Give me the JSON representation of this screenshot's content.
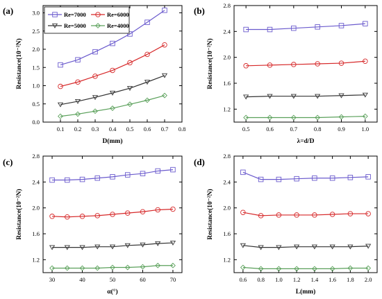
{
  "chart_data": [
    {
      "type": "line",
      "panel": "(a)",
      "xlabel": "D(mm)",
      "ylabel": "Resistance(10⁻²N)",
      "xlim": [
        0.0,
        0.8
      ],
      "ylim": [
        0.0,
        3.2
      ],
      "xticks": [
        "0.1",
        "0.2",
        "0.3",
        "0.4",
        "0.5",
        "0.6",
        "0.7",
        "0.8"
      ],
      "yticks": [
        "0.0",
        "0.5",
        "1.0",
        "1.5",
        "2.0",
        "2.5",
        "3.0"
      ],
      "legend": "top-left",
      "x": [
        0.1,
        0.2,
        0.3,
        0.4,
        0.5,
        0.6,
        0.7
      ],
      "series": [
        {
          "name": "Re=7000",
          "color": "#6a5acd",
          "marker": "square",
          "values": [
            1.57,
            1.71,
            1.93,
            2.16,
            2.42,
            2.74,
            3.07
          ]
        },
        {
          "name": "Re=6000",
          "color": "#d62728",
          "marker": "circle",
          "values": [
            0.98,
            1.1,
            1.26,
            1.42,
            1.63,
            1.86,
            2.12
          ]
        },
        {
          "name": "Re=5000",
          "color": "#333333",
          "marker": "triangle",
          "values": [
            0.48,
            0.57,
            0.68,
            0.8,
            0.93,
            1.1,
            1.28
          ]
        },
        {
          "name": "Re=4000",
          "color": "#5aa05a",
          "marker": "diamond",
          "values": [
            0.16,
            0.22,
            0.3,
            0.38,
            0.49,
            0.6,
            0.73
          ]
        }
      ]
    },
    {
      "type": "line",
      "panel": "(b)",
      "xlabel": "λ=d/D",
      "ylabel": "Resistance(10⁻²N)",
      "xlim": [
        0.45,
        1.05
      ],
      "ylim": [
        1.0,
        2.8
      ],
      "xticks": [
        "0.5",
        "0.6",
        "0.7",
        "0.8",
        "0.9",
        "1.0"
      ],
      "yticks": [
        "1.2",
        "1.6",
        "2.0",
        "2.4",
        "2.8"
      ],
      "x": [
        0.5,
        0.6,
        0.7,
        0.8,
        0.9,
        1.0
      ],
      "series": [
        {
          "name": "Re=7000",
          "color": "#6a5acd",
          "marker": "square",
          "values": [
            2.43,
            2.43,
            2.45,
            2.47,
            2.49,
            2.52
          ]
        },
        {
          "name": "Re=6000",
          "color": "#d62728",
          "marker": "circle",
          "values": [
            1.87,
            1.88,
            1.89,
            1.9,
            1.91,
            1.94
          ]
        },
        {
          "name": "Re=5000",
          "color": "#333333",
          "marker": "triangle",
          "values": [
            1.39,
            1.4,
            1.4,
            1.4,
            1.41,
            1.42
          ]
        },
        {
          "name": "Re=4000",
          "color": "#5aa05a",
          "marker": "diamond",
          "values": [
            1.07,
            1.07,
            1.07,
            1.07,
            1.08,
            1.09
          ]
        }
      ]
    },
    {
      "type": "line",
      "panel": "(c)",
      "xlabel": "α(°)",
      "ylabel": "Resistance(10⁻²N)",
      "xlim": [
        27,
        73
      ],
      "ylim": [
        1.0,
        2.8
      ],
      "xticks": [
        "30",
        "40",
        "50",
        "60",
        "70"
      ],
      "yticks": [
        "1.2",
        "1.6",
        "2.0",
        "2.4",
        "2.8"
      ],
      "x": [
        30,
        35,
        40,
        45,
        50,
        55,
        60,
        65,
        70
      ],
      "series": [
        {
          "name": "Re=7000",
          "color": "#6a5acd",
          "marker": "square",
          "values": [
            2.43,
            2.43,
            2.44,
            2.46,
            2.48,
            2.51,
            2.53,
            2.57,
            2.59
          ]
        },
        {
          "name": "Re=6000",
          "color": "#d62728",
          "marker": "circle",
          "values": [
            1.87,
            1.86,
            1.87,
            1.88,
            1.9,
            1.92,
            1.94,
            1.97,
            1.98
          ]
        },
        {
          "name": "Re=5000",
          "color": "#333333",
          "marker": "triangle",
          "values": [
            1.39,
            1.39,
            1.39,
            1.4,
            1.4,
            1.42,
            1.43,
            1.45,
            1.46
          ]
        },
        {
          "name": "Re=4000",
          "color": "#5aa05a",
          "marker": "diamond",
          "values": [
            1.07,
            1.07,
            1.07,
            1.07,
            1.08,
            1.08,
            1.09,
            1.11,
            1.11
          ]
        }
      ]
    },
    {
      "type": "line",
      "panel": "(d)",
      "xlabel": "L(mm)",
      "ylabel": "Resistance(10⁻²N)",
      "xlim": [
        0.5,
        2.1
      ],
      "ylim": [
        1.0,
        2.8
      ],
      "xticks": [
        "0.6",
        "0.8",
        "1.0",
        "1.2",
        "1.4",
        "1.6",
        "1.8",
        "2.0"
      ],
      "yticks": [
        "1.2",
        "1.6",
        "2.0",
        "2.4",
        "2.8"
      ],
      "x": [
        0.6,
        0.8,
        1.0,
        1.2,
        1.4,
        1.6,
        1.8,
        2.0
      ],
      "series": [
        {
          "name": "Re=7000",
          "color": "#6a5acd",
          "marker": "square",
          "values": [
            2.55,
            2.44,
            2.44,
            2.45,
            2.46,
            2.46,
            2.47,
            2.48
          ]
        },
        {
          "name": "Re=6000",
          "color": "#d62728",
          "marker": "circle",
          "values": [
            1.93,
            1.88,
            1.89,
            1.89,
            1.89,
            1.9,
            1.91,
            1.91
          ]
        },
        {
          "name": "Re=5000",
          "color": "#333333",
          "marker": "triangle",
          "values": [
            1.42,
            1.39,
            1.39,
            1.4,
            1.4,
            1.4,
            1.4,
            1.41
          ]
        },
        {
          "name": "Re=4000",
          "color": "#5aa05a",
          "marker": "diamond",
          "values": [
            1.08,
            1.06,
            1.06,
            1.06,
            1.06,
            1.06,
            1.07,
            1.07
          ]
        }
      ]
    }
  ]
}
